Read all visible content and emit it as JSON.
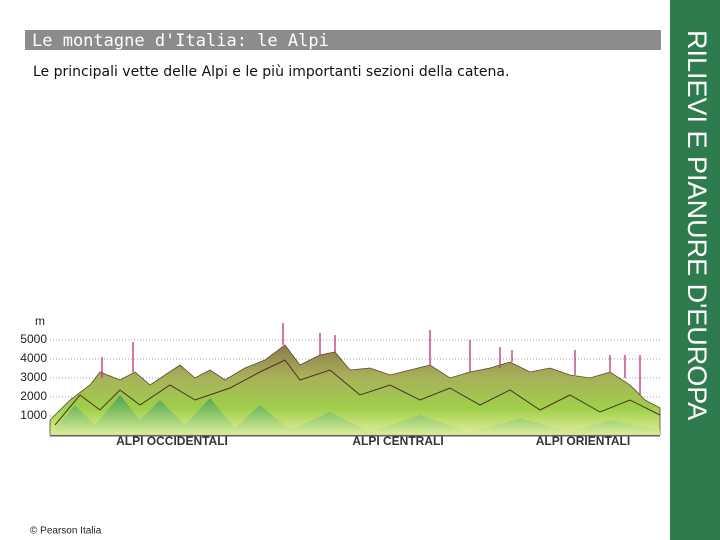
{
  "header": {
    "title": "Le montagne d'Italia: le Alpi",
    "subtitle": "Le principali vette delle Alpi e le più importanti sezioni della catena."
  },
  "side_label": "RILIEVI E PIANURE D'EUROPA",
  "profile": {
    "unit": "m",
    "ticks": [
      5000,
      4000,
      3000,
      2000,
      1000
    ],
    "sections": [
      "ALPI OCCIDENTALI",
      "ALPI CENTRALI",
      "ALPI ORIENTALI"
    ]
  },
  "footer": "© Pearson Italia"
}
